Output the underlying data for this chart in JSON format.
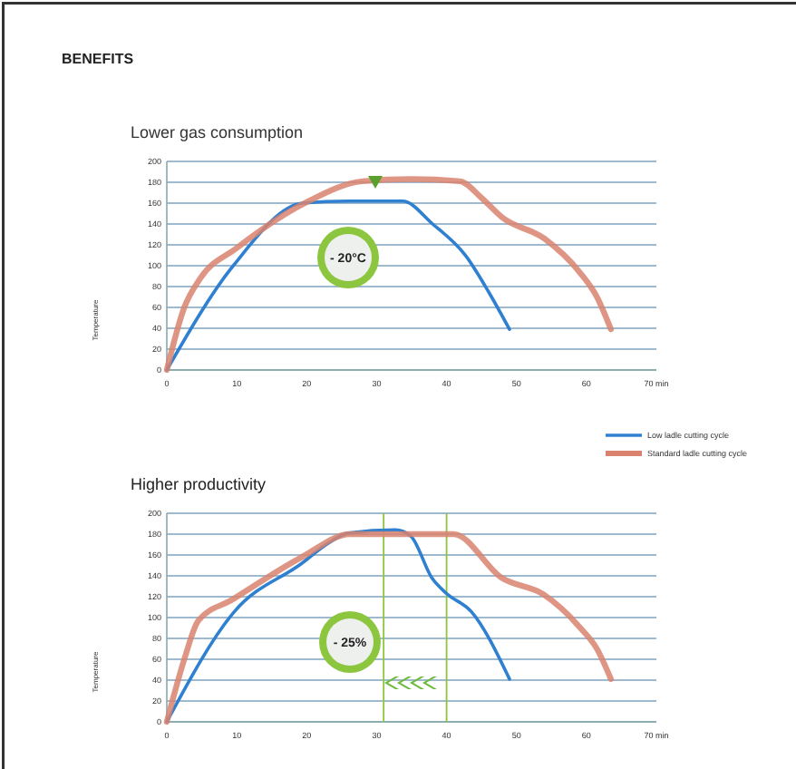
{
  "chart_data": [
    {
      "type": "line",
      "title": "BENEFITS",
      "subtitle": "Lower gas consumption",
      "ylabel": "Temperature",
      "xlim": [
        0,
        70
      ],
      "xticks": [
        0,
        10,
        20,
        30,
        40,
        50,
        60,
        {
          "value": 70,
          "label": "70 min"
        }
      ],
      "ylim": [
        0,
        200
      ],
      "yticks": [
        0,
        20,
        40,
        60,
        80,
        100,
        120,
        140,
        160,
        180,
        200
      ],
      "grid": "y",
      "legend": "bottom right",
      "marker": "none",
      "annotations": [
        "- 20°C"
      ],
      "series": [
        {
          "name": "Low ladle cutting cycle",
          "color": "#2f80d0",
          "x": [
            0,
            9.5,
            19.4,
            26,
            33.7,
            38,
            42.8,
            46,
            49
          ],
          "values": [
            0,
            100,
            160,
            162,
            162,
            140,
            109,
            75,
            39
          ]
        },
        {
          "name": "Standard ladle cutting cycle",
          "color": "#d9826e",
          "x": [
            0,
            2.5,
            4.8,
            10,
            20,
            28,
            35,
            41.9,
            45,
            48,
            54,
            59,
            61.5,
            63.5
          ],
          "values": [
            0,
            60,
            88,
            117,
            161,
            181,
            183,
            181,
            165,
            146,
            126,
            94,
            70,
            39
          ]
        }
      ]
    },
    {
      "type": "line",
      "title": "Higher productivity",
      "ylabel": "Temperature",
      "xlim": [
        0,
        70
      ],
      "xticks": [
        0,
        10,
        20,
        30,
        40,
        50,
        60,
        {
          "value": 70,
          "label": "70 min"
        }
      ],
      "ylim": [
        0,
        200
      ],
      "yticks": [
        0,
        20,
        40,
        60,
        80,
        100,
        120,
        140,
        160,
        180,
        200
      ],
      "grid": "y",
      "marker": "none",
      "annotations": [
        "- 25%"
      ],
      "ref_lines": [
        {
          "axis": "x",
          "value": 31,
          "color": "#8cc63f"
        },
        {
          "axis": "x",
          "value": 40,
          "color": "#8cc63f"
        }
      ],
      "series": [
        {
          "color": "#2f80d0",
          "x": [
            0,
            9.7,
            19.3,
            23,
            26,
            32.7,
            34.9,
            37.9,
            40,
            43.5,
            49
          ],
          "values": [
            0,
            106,
            152,
            171,
            181,
            184,
            178,
            138,
            123,
            106,
            41
          ]
        },
        {
          "color": "#d9826e",
          "x": [
            0,
            2.5,
            4.5,
            9.3,
            19.3,
            26.2,
            41,
            47.9,
            53.9,
            59,
            61.5,
            63.5
          ],
          "values": [
            0,
            60,
            97,
            117,
            158,
            180,
            180,
            138,
            122,
            91,
            70,
            41
          ]
        }
      ]
    }
  ]
}
